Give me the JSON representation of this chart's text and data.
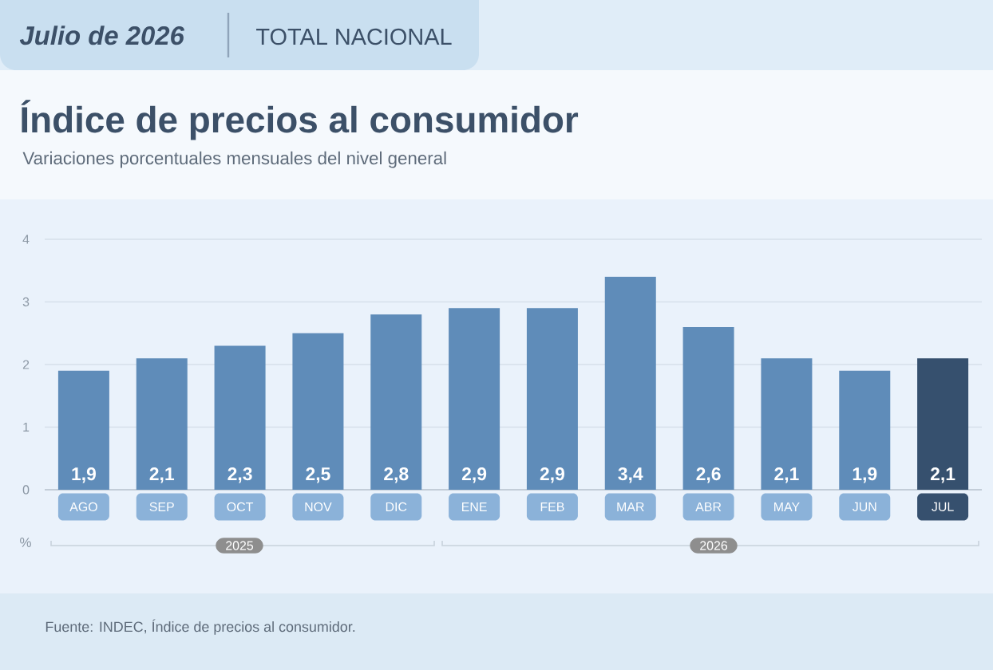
{
  "chart_data": {
    "type": "bar",
    "title": "Índice de precios al consumidor",
    "subtitle": "Variaciones porcentuales mensuales del nivel general",
    "ylabel": "%",
    "categories": [
      "AGO",
      "SEP",
      "OCT",
      "NOV",
      "DIC",
      "ENE",
      "FEB",
      "MAR",
      "ABR",
      "MAY",
      "JUN",
      "JUL"
    ],
    "values": [
      1.9,
      2.1,
      2.3,
      2.5,
      2.8,
      2.9,
      2.9,
      3.4,
      2.6,
      2.1,
      1.9,
      2.1
    ],
    "colors": [
      "#5f8cb9",
      "#5f8cb9",
      "#5f8cb9",
      "#5f8cb9",
      "#5f8cb9",
      "#5f8cb9",
      "#5f8cb9",
      "#5f8cb9",
      "#5f8cb9",
      "#5f8cb9",
      "#5f8cb9",
      "#36506e"
    ],
    "value_labels": [
      "1,9",
      "2,1",
      "2,3",
      "2,5",
      "2,8",
      "2,9",
      "2,9",
      "3,4",
      "2,6",
      "2,1",
      "1,9",
      "2,1"
    ],
    "ylim": [
      0,
      4
    ],
    "yticks": [
      0,
      1,
      2,
      3,
      4
    ],
    "grid": "y",
    "annotations": [
      "Julio de 2026",
      "TOTAL NACIONAL",
      "2025",
      "2026",
      "Fuente: INDEC, Índice de precios al consumidor."
    ]
  }
}
